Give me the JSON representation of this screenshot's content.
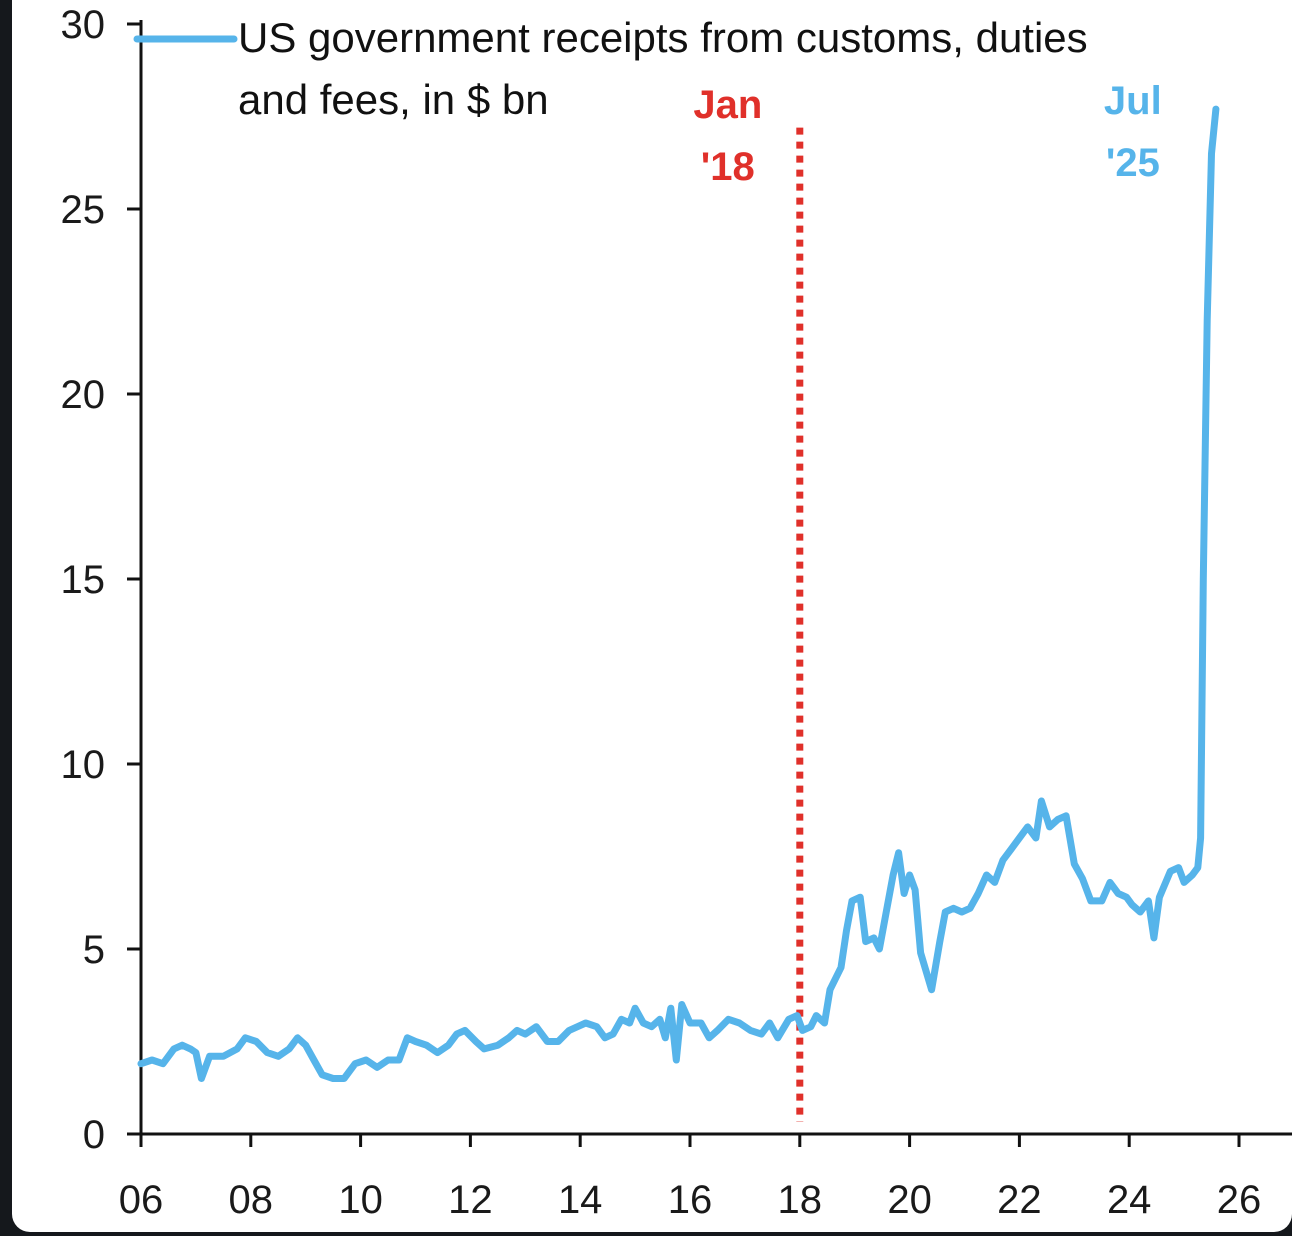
{
  "colors": {
    "series": "#56b4ea",
    "marker": "#e0302a",
    "axis": "#111111"
  },
  "chart_data": {
    "type": "line",
    "x_axis": {
      "min": 2006,
      "max": 2026,
      "ticks": [
        {
          "value": 2006,
          "label": "06"
        },
        {
          "value": 2008,
          "label": "08"
        },
        {
          "value": 2010,
          "label": "10"
        },
        {
          "value": 2012,
          "label": "12"
        },
        {
          "value": 2014,
          "label": "14"
        },
        {
          "value": 2016,
          "label": "16"
        },
        {
          "value": 2018,
          "label": "18"
        },
        {
          "value": 2020,
          "label": "20"
        },
        {
          "value": 2022,
          "label": "22"
        },
        {
          "value": 2024,
          "label": "24"
        },
        {
          "value": 2026,
          "label": "26"
        }
      ]
    },
    "y_axis": {
      "min": 0,
      "max": 30,
      "ticks": [
        {
          "value": 0,
          "label": "0"
        },
        {
          "value": 5,
          "label": "5"
        },
        {
          "value": 10,
          "label": "10"
        },
        {
          "value": 15,
          "label": "15"
        },
        {
          "value": 20,
          "label": "20"
        },
        {
          "value": 25,
          "label": "25"
        },
        {
          "value": 30,
          "label": "30"
        }
      ]
    },
    "grid": false,
    "legend": {
      "position": "top-left",
      "lines": [
        "US government receipts from customs, duties",
        "and fees, in $ bn"
      ]
    },
    "series": [
      {
        "name": "US government receipts from customs, duties and fees, in $ bn",
        "points": [
          [
            2006.0,
            1.9
          ],
          [
            2006.2,
            2.0
          ],
          [
            2006.4,
            1.9
          ],
          [
            2006.6,
            2.3
          ],
          [
            2006.75,
            2.4
          ],
          [
            2006.9,
            2.3
          ],
          [
            2007.0,
            2.2
          ],
          [
            2007.1,
            1.5
          ],
          [
            2007.25,
            2.1
          ],
          [
            2007.5,
            2.1
          ],
          [
            2007.75,
            2.3
          ],
          [
            2007.9,
            2.6
          ],
          [
            2008.1,
            2.5
          ],
          [
            2008.3,
            2.2
          ],
          [
            2008.5,
            2.1
          ],
          [
            2008.7,
            2.3
          ],
          [
            2008.85,
            2.6
          ],
          [
            2009.0,
            2.4
          ],
          [
            2009.15,
            2.0
          ],
          [
            2009.3,
            1.6
          ],
          [
            2009.5,
            1.5
          ],
          [
            2009.7,
            1.5
          ],
          [
            2009.9,
            1.9
          ],
          [
            2010.1,
            2.0
          ],
          [
            2010.3,
            1.8
          ],
          [
            2010.5,
            2.0
          ],
          [
            2010.7,
            2.0
          ],
          [
            2010.85,
            2.6
          ],
          [
            2011.0,
            2.5
          ],
          [
            2011.2,
            2.4
          ],
          [
            2011.4,
            2.2
          ],
          [
            2011.6,
            2.4
          ],
          [
            2011.75,
            2.7
          ],
          [
            2011.9,
            2.8
          ],
          [
            2012.1,
            2.5
          ],
          [
            2012.25,
            2.3
          ],
          [
            2012.5,
            2.4
          ],
          [
            2012.7,
            2.6
          ],
          [
            2012.85,
            2.8
          ],
          [
            2013.0,
            2.7
          ],
          [
            2013.2,
            2.9
          ],
          [
            2013.4,
            2.5
          ],
          [
            2013.6,
            2.5
          ],
          [
            2013.8,
            2.8
          ],
          [
            2013.95,
            2.9
          ],
          [
            2014.1,
            3.0
          ],
          [
            2014.3,
            2.9
          ],
          [
            2014.45,
            2.6
          ],
          [
            2014.6,
            2.7
          ],
          [
            2014.75,
            3.1
          ],
          [
            2014.9,
            3.0
          ],
          [
            2015.0,
            3.4
          ],
          [
            2015.15,
            3.0
          ],
          [
            2015.3,
            2.9
          ],
          [
            2015.45,
            3.1
          ],
          [
            2015.55,
            2.6
          ],
          [
            2015.65,
            3.4
          ],
          [
            2015.75,
            2.0
          ],
          [
            2015.85,
            3.5
          ],
          [
            2016.0,
            3.0
          ],
          [
            2016.2,
            3.0
          ],
          [
            2016.35,
            2.6
          ],
          [
            2016.5,
            2.8
          ],
          [
            2016.7,
            3.1
          ],
          [
            2016.9,
            3.0
          ],
          [
            2017.1,
            2.8
          ],
          [
            2017.3,
            2.7
          ],
          [
            2017.45,
            3.0
          ],
          [
            2017.6,
            2.6
          ],
          [
            2017.8,
            3.1
          ],
          [
            2017.95,
            3.2
          ],
          [
            2018.05,
            2.8
          ],
          [
            2018.2,
            2.9
          ],
          [
            2018.3,
            3.2
          ],
          [
            2018.45,
            3.0
          ],
          [
            2018.55,
            3.9
          ],
          [
            2018.75,
            4.5
          ],
          [
            2018.85,
            5.5
          ],
          [
            2018.95,
            6.3
          ],
          [
            2019.1,
            6.4
          ],
          [
            2019.2,
            5.2
          ],
          [
            2019.35,
            5.3
          ],
          [
            2019.45,
            5.0
          ],
          [
            2019.6,
            6.2
          ],
          [
            2019.7,
            7.0
          ],
          [
            2019.8,
            7.6
          ],
          [
            2019.9,
            6.5
          ],
          [
            2020.0,
            7.0
          ],
          [
            2020.1,
            6.6
          ],
          [
            2020.2,
            4.9
          ],
          [
            2020.4,
            3.9
          ],
          [
            2020.55,
            5.2
          ],
          [
            2020.65,
            6.0
          ],
          [
            2020.8,
            6.1
          ],
          [
            2020.95,
            6.0
          ],
          [
            2021.1,
            6.1
          ],
          [
            2021.25,
            6.5
          ],
          [
            2021.4,
            7.0
          ],
          [
            2021.55,
            6.8
          ],
          [
            2021.7,
            7.4
          ],
          [
            2021.85,
            7.7
          ],
          [
            2022.0,
            8.0
          ],
          [
            2022.15,
            8.3
          ],
          [
            2022.3,
            8.0
          ],
          [
            2022.4,
            9.0
          ],
          [
            2022.55,
            8.3
          ],
          [
            2022.7,
            8.5
          ],
          [
            2022.85,
            8.6
          ],
          [
            2023.0,
            7.3
          ],
          [
            2023.15,
            6.9
          ],
          [
            2023.3,
            6.3
          ],
          [
            2023.5,
            6.3
          ],
          [
            2023.65,
            6.8
          ],
          [
            2023.8,
            6.5
          ],
          [
            2023.95,
            6.4
          ],
          [
            2024.05,
            6.2
          ],
          [
            2024.2,
            6.0
          ],
          [
            2024.35,
            6.3
          ],
          [
            2024.45,
            5.3
          ],
          [
            2024.55,
            6.4
          ],
          [
            2024.75,
            7.1
          ],
          [
            2024.9,
            7.2
          ],
          [
            2025.0,
            6.8
          ],
          [
            2025.15,
            7.0
          ],
          [
            2025.25,
            7.2
          ],
          [
            2025.3,
            8.0
          ],
          [
            2025.35,
            15.0
          ],
          [
            2025.42,
            22.0
          ],
          [
            2025.5,
            26.5
          ],
          [
            2025.58,
            27.7
          ]
        ]
      }
    ],
    "annotations": [
      {
        "type": "vline",
        "x": 2018.0,
        "y_top": 27.2,
        "color": "#e0302a",
        "lines": [
          "Jan",
          "'18"
        ]
      },
      {
        "type": "label",
        "x": 2025.25,
        "color": "#56b4ea",
        "lines": [
          "Jul",
          "'25"
        ]
      }
    ]
  }
}
